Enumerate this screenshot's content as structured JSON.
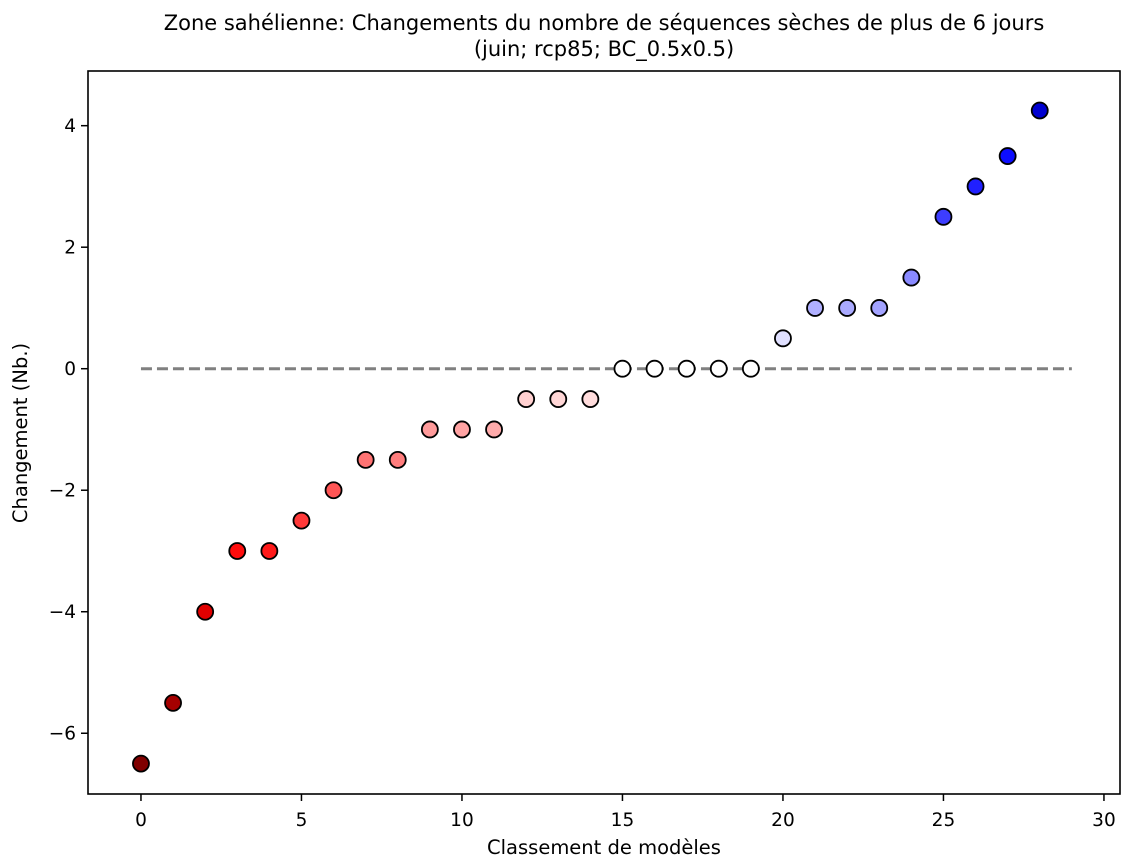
{
  "chart_data": {
    "type": "scatter",
    "title": "Zone sahélienne: Changements du nombre de séquences sèches de plus de 6 jours",
    "subtitle": "(juin; rcp85; BC_0.5x0.5)",
    "xlabel": "Classement de modèles",
    "ylabel": "Changement (Nb.)",
    "xlim": [
      -1.65,
      30.5
    ],
    "ylim": [
      -7.0,
      4.9
    ],
    "xticks": [
      0,
      5,
      10,
      15,
      20,
      25,
      30
    ],
    "xtick_labels": [
      "0",
      "5",
      "10",
      "15",
      "20",
      "25",
      "30"
    ],
    "yticks": [
      4,
      2,
      0,
      -2,
      -4,
      -6
    ],
    "ytick_labels": [
      "4",
      "2",
      "0",
      "−2",
      "−4",
      "−6"
    ],
    "grid": false,
    "reference_line": {
      "y": 0,
      "x_range": [
        0,
        29
      ],
      "style": "dashed",
      "color": "#808080"
    },
    "points": [
      {
        "x": 0,
        "y": -6.5,
        "color": "#800000"
      },
      {
        "x": 1,
        "y": -5.5,
        "color": "#a50000"
      },
      {
        "x": 2,
        "y": -4.0,
        "color": "#e00000"
      },
      {
        "x": 3,
        "y": -3.0,
        "color": "#ff0d0d"
      },
      {
        "x": 4,
        "y": -3.0,
        "color": "#ff1a1a"
      },
      {
        "x": 5,
        "y": -2.5,
        "color": "#ff3939"
      },
      {
        "x": 6,
        "y": -2.0,
        "color": "#ff5555"
      },
      {
        "x": 7,
        "y": -1.5,
        "color": "#ff7373"
      },
      {
        "x": 8,
        "y": -1.5,
        "color": "#ff7d7d"
      },
      {
        "x": 9,
        "y": -1.0,
        "color": "#ff9b9b"
      },
      {
        "x": 10,
        "y": -1.0,
        "color": "#ffa3a3"
      },
      {
        "x": 11,
        "y": -1.0,
        "color": "#ffabab"
      },
      {
        "x": 12,
        "y": -0.5,
        "color": "#ffd0d0"
      },
      {
        "x": 13,
        "y": -0.5,
        "color": "#ffd6d6"
      },
      {
        "x": 14,
        "y": -0.5,
        "color": "#ffdcdc"
      },
      {
        "x": 15,
        "y": 0,
        "color": "#ffffff"
      },
      {
        "x": 16,
        "y": 0,
        "color": "#ffffff"
      },
      {
        "x": 17,
        "y": 0,
        "color": "#ffffff"
      },
      {
        "x": 18,
        "y": 0,
        "color": "#ffffff"
      },
      {
        "x": 19,
        "y": 0,
        "color": "#ffffff"
      },
      {
        "x": 20,
        "y": 0.5,
        "color": "#e0e0ff"
      },
      {
        "x": 21,
        "y": 1.0,
        "color": "#b0b0ff"
      },
      {
        "x": 22,
        "y": 1.0,
        "color": "#aaaaff"
      },
      {
        "x": 23,
        "y": 1.0,
        "color": "#a3a3ff"
      },
      {
        "x": 24,
        "y": 1.5,
        "color": "#8a8aff"
      },
      {
        "x": 25,
        "y": 2.5,
        "color": "#3d3dff"
      },
      {
        "x": 26,
        "y": 3.0,
        "color": "#2020ff"
      },
      {
        "x": 27,
        "y": 3.5,
        "color": "#0d0dff"
      },
      {
        "x": 28,
        "y": 4.25,
        "color": "#0000d0"
      }
    ]
  }
}
